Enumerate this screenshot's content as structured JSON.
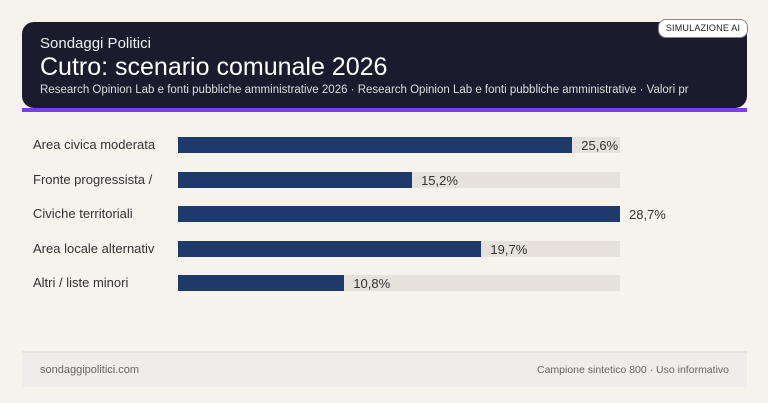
{
  "header": {
    "kicker": "Sondaggi Politici",
    "badge": "SIMULAZIONE AI"
  },
  "chart_data": {
    "type": "bar",
    "orientation": "horizontal",
    "title": "Cutro: scenario comunale 2026",
    "subtitle": "Research Opinion Lab e fonti pubbliche amministrative 2026 · Research Opinion Lab e fonti pubbliche amministrative · Valori pr",
    "categories": [
      "Area civica moderata",
      "Fronte progressista /",
      "Civiche territoriali",
      "Area locale alternativ",
      "Altri / liste minori"
    ],
    "values": [
      25.6,
      15.2,
      28.7,
      19.7,
      10.8
    ],
    "data_labels": [
      "25,6%",
      "15,2%",
      "28,7%",
      "19,7%",
      "10,8%"
    ],
    "xlim": [
      0,
      28.7
    ],
    "grid": false,
    "colors": {
      "bar": "#1e3a6b",
      "track": "#e6e1da",
      "accent": "#7b3fe4"
    }
  },
  "footer": {
    "left": "sondaggipolitici.com",
    "right": "Campione sintetico 800 · Uso informativo"
  }
}
